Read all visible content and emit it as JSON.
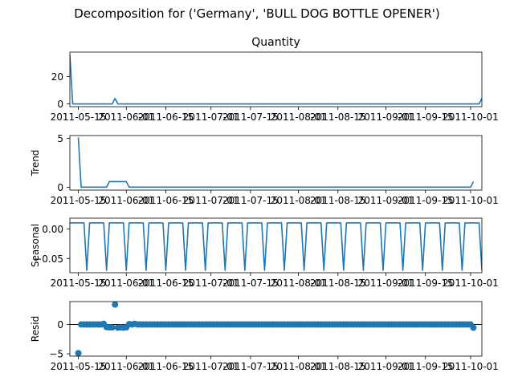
{
  "figure": {
    "suptitle": "Decomposition for ('Germany', 'BULL DOG BOTTLE OPENER')"
  },
  "colors": {
    "line": "#1f77b4",
    "axis": "#000000",
    "background": "#ffffff"
  },
  "chart_data": [
    {
      "type": "line",
      "title": "Quantity",
      "ylabel": "",
      "xlim": [
        "2011-05-12",
        "2011-10-05"
      ],
      "ylim": [
        -2,
        38
      ],
      "x_ticks": [
        "2011-05-15",
        "2011-06-01",
        "2011-06-15",
        "2011-07-01",
        "2011-07-15",
        "2011-08-01",
        "2011-08-15",
        "2011-09-01",
        "2011-09-15",
        "2011-10-01"
      ],
      "y_ticks": [
        {
          "value": 0,
          "label": "0"
        },
        {
          "value": 20,
          "label": "20"
        }
      ],
      "grid": false,
      "series": [
        {
          "points": [
            {
              "x": "2011-05-12",
              "y": 36
            },
            {
              "x": "2011-05-13",
              "y": 0
            },
            {
              "x": "2011-05-27",
              "y": 0
            },
            {
              "x": "2011-05-28",
              "y": 4
            },
            {
              "x": "2011-05-29",
              "y": 0
            },
            {
              "x": "2011-10-04",
              "y": 0
            },
            {
              "x": "2011-10-05",
              "y": 4
            }
          ]
        }
      ]
    },
    {
      "type": "line",
      "title": "",
      "ylabel": "Trend",
      "xlim": [
        "2011-05-12",
        "2011-10-05"
      ],
      "ylim": [
        -0.3,
        5.3
      ],
      "x_ticks": [
        "2011-05-15",
        "2011-06-01",
        "2011-06-15",
        "2011-07-01",
        "2011-07-15",
        "2011-08-01",
        "2011-08-15",
        "2011-09-01",
        "2011-09-15",
        "2011-10-01"
      ],
      "y_ticks": [
        {
          "value": 0,
          "label": "0"
        },
        {
          "value": 5,
          "label": "5"
        }
      ],
      "grid": false,
      "series": [
        {
          "points": [
            {
              "x": "2011-05-15",
              "y": 5.1
            },
            {
              "x": "2011-05-16",
              "y": 0
            },
            {
              "x": "2011-05-25",
              "y": 0
            },
            {
              "x": "2011-05-26",
              "y": 0.57
            },
            {
              "x": "2011-06-01",
              "y": 0.57
            },
            {
              "x": "2011-06-02",
              "y": 0
            },
            {
              "x": "2011-10-01",
              "y": 0
            },
            {
              "x": "2011-10-02",
              "y": 0.57
            }
          ]
        }
      ]
    },
    {
      "type": "line",
      "title": "",
      "ylabel": "Seasonal",
      "xlim": [
        "2011-05-12",
        "2011-10-05"
      ],
      "ylim": [
        -0.074,
        0.018
      ],
      "x_ticks": [
        "2011-05-15",
        "2011-06-01",
        "2011-06-15",
        "2011-07-01",
        "2011-07-15",
        "2011-08-01",
        "2011-08-15",
        "2011-09-01",
        "2011-09-15",
        "2011-10-01"
      ],
      "y_ticks": [
        {
          "value": 0.0,
          "label": "0.00"
        },
        {
          "value": -0.05,
          "label": "−0.05"
        }
      ],
      "grid": false,
      "series": [
        {
          "period_days": 7,
          "pattern": [
            0.01,
            0.01,
            0.01,
            0.01,
            0.01,
            0.01,
            -0.07
          ],
          "start": "2011-05-12",
          "end": "2011-10-05"
        }
      ]
    },
    {
      "type": "scatter",
      "title": "",
      "ylabel": "Resid",
      "xlim": [
        "2011-05-12",
        "2011-10-05"
      ],
      "ylim": [
        -5.4,
        3.9
      ],
      "x_ticks": [
        "2011-05-15",
        "2011-06-01",
        "2011-06-15",
        "2011-07-01",
        "2011-07-15",
        "2011-08-01",
        "2011-08-15",
        "2011-09-01",
        "2011-09-15",
        "2011-10-01"
      ],
      "y_ticks": [
        {
          "value": 0,
          "label": "0"
        },
        {
          "value": -5,
          "label": "−5"
        }
      ],
      "grid": false,
      "zero_line": true,
      "series": [
        {
          "default_y": 0,
          "start": "2011-05-15",
          "end": "2011-10-02",
          "points": [
            {
              "x": "2011-05-15",
              "y": -4.9
            },
            {
              "x": "2011-05-24",
              "y": 0.1
            },
            {
              "x": "2011-05-25",
              "y": -0.45
            },
            {
              "x": "2011-05-26",
              "y": -0.5
            },
            {
              "x": "2011-05-27",
              "y": -0.5
            },
            {
              "x": "2011-05-28",
              "y": 3.4
            },
            {
              "x": "2011-05-29",
              "y": -0.55
            },
            {
              "x": "2011-05-30",
              "y": -0.5
            },
            {
              "x": "2011-05-31",
              "y": -0.55
            },
            {
              "x": "2011-06-01",
              "y": -0.5
            },
            {
              "x": "2011-06-02",
              "y": 0.05
            },
            {
              "x": "2011-06-04",
              "y": 0.1
            },
            {
              "x": "2011-10-02",
              "y": -0.55
            }
          ]
        }
      ]
    }
  ]
}
